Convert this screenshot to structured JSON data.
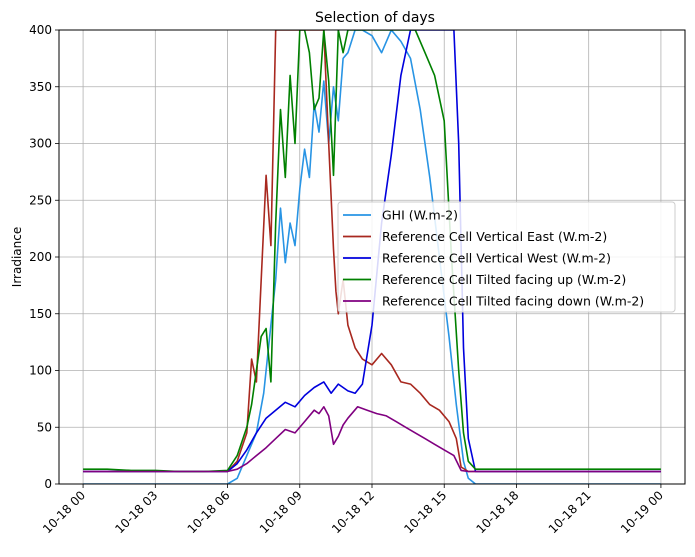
{
  "chart_data": {
    "type": "line",
    "title": "Selection of days",
    "xlabel": "",
    "ylabel": "Irradiance",
    "xlim": [
      "2023-10-17 23:00",
      "2023-10-19 01:00"
    ],
    "ylim": [
      0,
      400
    ],
    "grid": true,
    "legend_position": "center-right",
    "x_ticks": [
      "10-18 00",
      "10-18 03",
      "10-18 06",
      "10-18 09",
      "10-18 12",
      "10-18 15",
      "10-18 18",
      "10-18 21",
      "10-19 00"
    ],
    "y_ticks": [
      0,
      50,
      100,
      150,
      200,
      250,
      300,
      350,
      400
    ],
    "x_unit_note": "x values are hours of day on 10-18 (24 = 10-19 00)",
    "series": [
      {
        "name": "GHI (W.m-2)",
        "color": "#2894e4",
        "x": [
          0,
          6.0,
          6.4,
          6.8,
          7.2,
          7.5,
          7.8,
          8.0,
          8.2,
          8.4,
          8.6,
          8.8,
          9.0,
          9.2,
          9.4,
          9.6,
          9.8,
          10.0,
          10.2,
          10.4,
          10.6,
          10.8,
          11.0,
          11.3,
          11.6,
          12.0,
          12.4,
          12.8,
          13.2,
          13.6,
          14.0,
          14.4,
          14.8,
          15.2,
          15.5,
          15.8,
          16.0,
          16.3,
          24
        ],
        "y": [
          0,
          0,
          5,
          25,
          45,
          80,
          140,
          180,
          243,
          195,
          230,
          210,
          260,
          295,
          270,
          335,
          310,
          355,
          300,
          350,
          320,
          375,
          380,
          400,
          400,
          395,
          380,
          400,
          390,
          375,
          330,
          270,
          200,
          130,
          70,
          20,
          5,
          0,
          0
        ]
      },
      {
        "name": "Reference Cell Vertical East (W.m-2)",
        "color": "#a8281f",
        "x": [
          0,
          6.0,
          6.4,
          6.8,
          7.0,
          7.2,
          7.4,
          7.6,
          7.8,
          8.0,
          8.2,
          8.5,
          9.0,
          9.5,
          10.0,
          10.2,
          10.4,
          10.5,
          10.6,
          10.8,
          11.0,
          11.3,
          11.6,
          12.0,
          12.4,
          12.8,
          13.2,
          13.6,
          14.0,
          14.4,
          14.8,
          15.2,
          15.5,
          15.7,
          16.0,
          24
        ],
        "y": [
          11,
          11,
          20,
          45,
          110,
          90,
          180,
          272,
          210,
          400,
          400,
          400,
          400,
          400,
          400,
          300,
          207,
          170,
          150,
          180,
          140,
          120,
          110,
          105,
          115,
          105,
          90,
          88,
          80,
          70,
          65,
          55,
          40,
          15,
          11,
          11
        ]
      },
      {
        "name": "Reference Cell Vertical West (W.m-2)",
        "color": "#0000dd",
        "x": [
          0,
          6.0,
          6.4,
          6.8,
          7.2,
          7.6,
          8.0,
          8.4,
          8.8,
          9.2,
          9.6,
          10.0,
          10.3,
          10.6,
          11.0,
          11.3,
          11.6,
          12.0,
          12.4,
          12.8,
          13.2,
          13.6,
          14.0,
          14.4,
          14.8,
          15.2,
          15.4,
          15.6,
          15.8,
          16.0,
          16.3,
          24
        ],
        "y": [
          11,
          11,
          18,
          30,
          45,
          58,
          65,
          72,
          68,
          78,
          85,
          90,
          80,
          88,
          82,
          80,
          88,
          140,
          230,
          290,
          360,
          400,
          400,
          400,
          400,
          400,
          400,
          300,
          120,
          40,
          11,
          11
        ]
      },
      {
        "name": "Reference Cell Tilted facing up (W.m-2)",
        "color": "#008000",
        "x": [
          0,
          1.0,
          2.0,
          3.0,
          4.0,
          5.0,
          6.0,
          6.4,
          6.8,
          7.0,
          7.2,
          7.4,
          7.6,
          7.8,
          8.0,
          8.2,
          8.4,
          8.6,
          8.8,
          9.0,
          9.2,
          9.4,
          9.6,
          9.8,
          10.0,
          10.2,
          10.4,
          10.6,
          10.8,
          11.0,
          11.4,
          11.8,
          12.2,
          12.6,
          13.0,
          13.4,
          13.8,
          14.2,
          14.6,
          15.0,
          15.3,
          15.6,
          15.8,
          16.0,
          16.3,
          24
        ],
        "y": [
          13,
          13,
          12,
          12,
          11,
          11,
          12,
          25,
          50,
          70,
          100,
          130,
          137,
          90,
          230,
          330,
          270,
          360,
          300,
          400,
          400,
          380,
          330,
          340,
          400,
          355,
          272,
          400,
          380,
          400,
          400,
          400,
          400,
          400,
          400,
          400,
          400,
          380,
          360,
          320,
          200,
          100,
          45,
          20,
          13,
          13
        ]
      },
      {
        "name": "Reference Cell Tilted facing down (W.m-2)",
        "color": "#800080",
        "x": [
          0,
          6.0,
          6.4,
          6.8,
          7.2,
          7.6,
          8.0,
          8.4,
          8.8,
          9.2,
          9.6,
          9.8,
          10.0,
          10.2,
          10.4,
          10.6,
          10.8,
          11.0,
          11.4,
          11.8,
          12.2,
          12.6,
          13.0,
          13.4,
          13.8,
          14.2,
          14.6,
          15.0,
          15.4,
          15.7,
          16.0,
          24
        ],
        "y": [
          11,
          11,
          13,
          18,
          25,
          32,
          40,
          48,
          45,
          55,
          65,
          62,
          68,
          60,
          35,
          42,
          52,
          58,
          68,
          65,
          62,
          60,
          55,
          50,
          45,
          40,
          35,
          30,
          25,
          12,
          11,
          11
        ]
      }
    ]
  }
}
